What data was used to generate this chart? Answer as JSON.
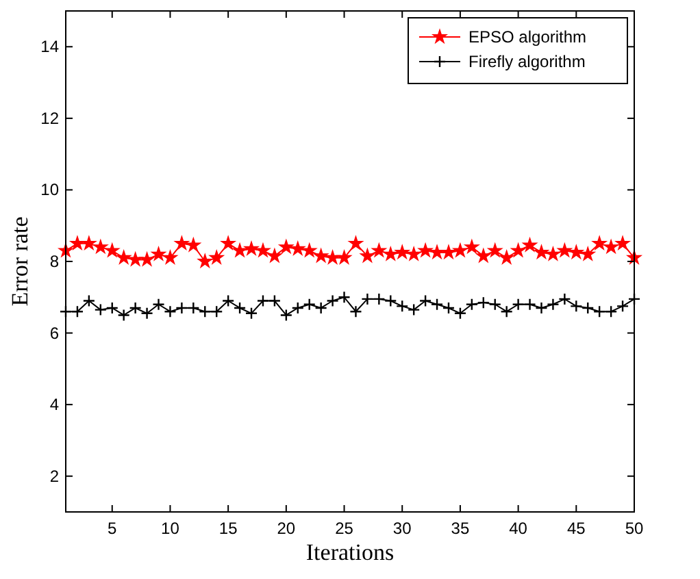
{
  "chart_data": {
    "type": "line",
    "xlabel": "Iterations",
    "ylabel": "Error rate",
    "x": [
      1,
      2,
      3,
      4,
      5,
      6,
      7,
      8,
      9,
      10,
      11,
      12,
      13,
      14,
      15,
      16,
      17,
      18,
      19,
      20,
      21,
      22,
      23,
      24,
      25,
      26,
      27,
      28,
      29,
      30,
      31,
      32,
      33,
      34,
      35,
      36,
      37,
      38,
      39,
      40,
      41,
      42,
      43,
      44,
      45,
      46,
      47,
      48,
      49,
      50
    ],
    "series": [
      {
        "name": "EPSO algorithm",
        "color": "#ff0000",
        "marker": "star",
        "values": [
          8.3,
          8.5,
          8.5,
          8.4,
          8.3,
          8.1,
          8.05,
          8.05,
          8.2,
          8.1,
          8.5,
          8.45,
          8.0,
          8.1,
          8.5,
          8.3,
          8.35,
          8.3,
          8.15,
          8.4,
          8.35,
          8.3,
          8.15,
          8.1,
          8.1,
          8.5,
          8.15,
          8.3,
          8.2,
          8.25,
          8.2,
          8.3,
          8.25,
          8.25,
          8.3,
          8.4,
          8.15,
          8.3,
          8.1,
          8.3,
          8.45,
          8.25,
          8.2,
          8.3,
          8.25,
          8.2,
          8.5,
          8.4,
          8.5,
          8.1
        ]
      },
      {
        "name": "Firefly algorithm",
        "color": "#000000",
        "marker": "cross",
        "values": [
          6.6,
          6.6,
          6.9,
          6.65,
          6.7,
          6.5,
          6.7,
          6.55,
          6.8,
          6.6,
          6.7,
          6.7,
          6.6,
          6.6,
          6.9,
          6.7,
          6.55,
          6.9,
          6.9,
          6.5,
          6.7,
          6.8,
          6.7,
          6.9,
          7.0,
          6.6,
          6.95,
          6.95,
          6.9,
          6.75,
          6.65,
          6.9,
          6.8,
          6.7,
          6.55,
          6.8,
          6.85,
          6.8,
          6.6,
          6.8,
          6.8,
          6.7,
          6.8,
          6.95,
          6.75,
          6.7,
          6.6,
          6.6,
          6.75,
          6.95
        ]
      }
    ],
    "xlim": [
      1,
      50
    ],
    "ylim": [
      1,
      15
    ],
    "xticks": [
      5,
      10,
      15,
      20,
      25,
      30,
      35,
      40,
      45,
      50
    ],
    "yticks": [
      2,
      4,
      6,
      8,
      10,
      12,
      14
    ],
    "grid": false,
    "legend": "top right",
    "line_style": "solid"
  }
}
